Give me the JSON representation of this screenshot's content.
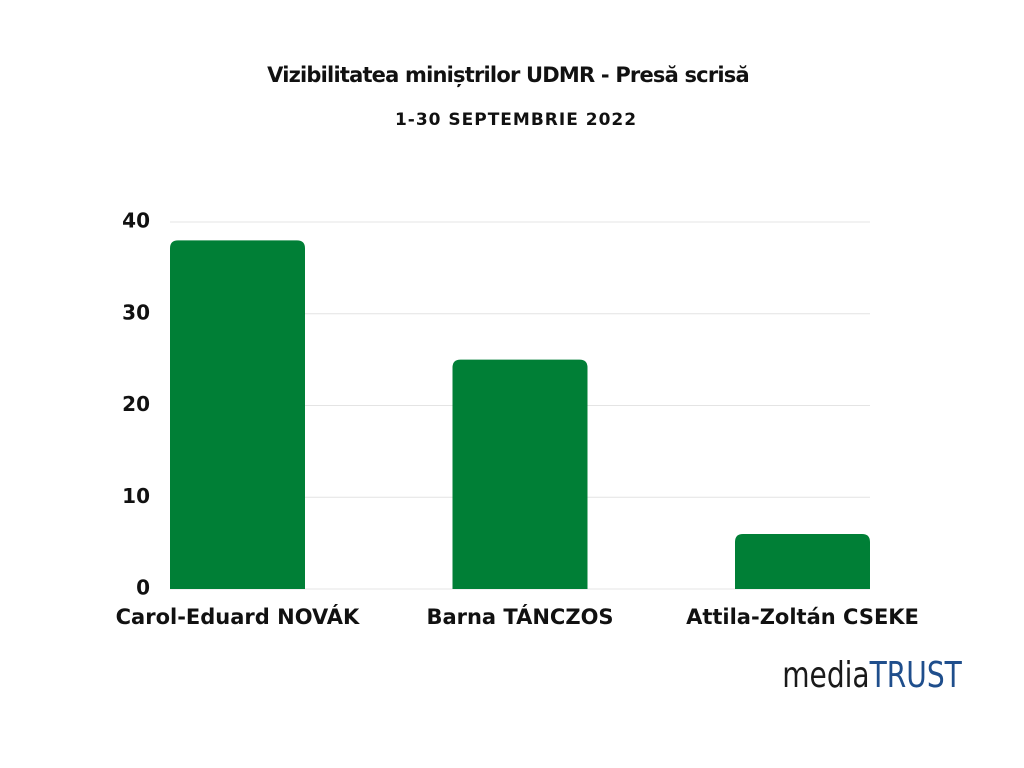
{
  "chart_data": {
    "type": "bar",
    "title": "Vizibilitatea miniștrilor UDMR - Presă scrisă",
    "subtitle": "1-30 SEPTEMBRIE 2022",
    "categories": [
      "Carol-Eduard NOVÁK",
      "Barna TÁNCZOS",
      "Attila-Zoltán CSEKE"
    ],
    "values": [
      38,
      25,
      6
    ],
    "color": "#007f36",
    "ylim": [
      0,
      40
    ],
    "yticks": [
      0,
      10,
      20,
      30,
      40
    ],
    "grid": true
  },
  "logo": {
    "part1": "media",
    "part2": "TRUST"
  }
}
